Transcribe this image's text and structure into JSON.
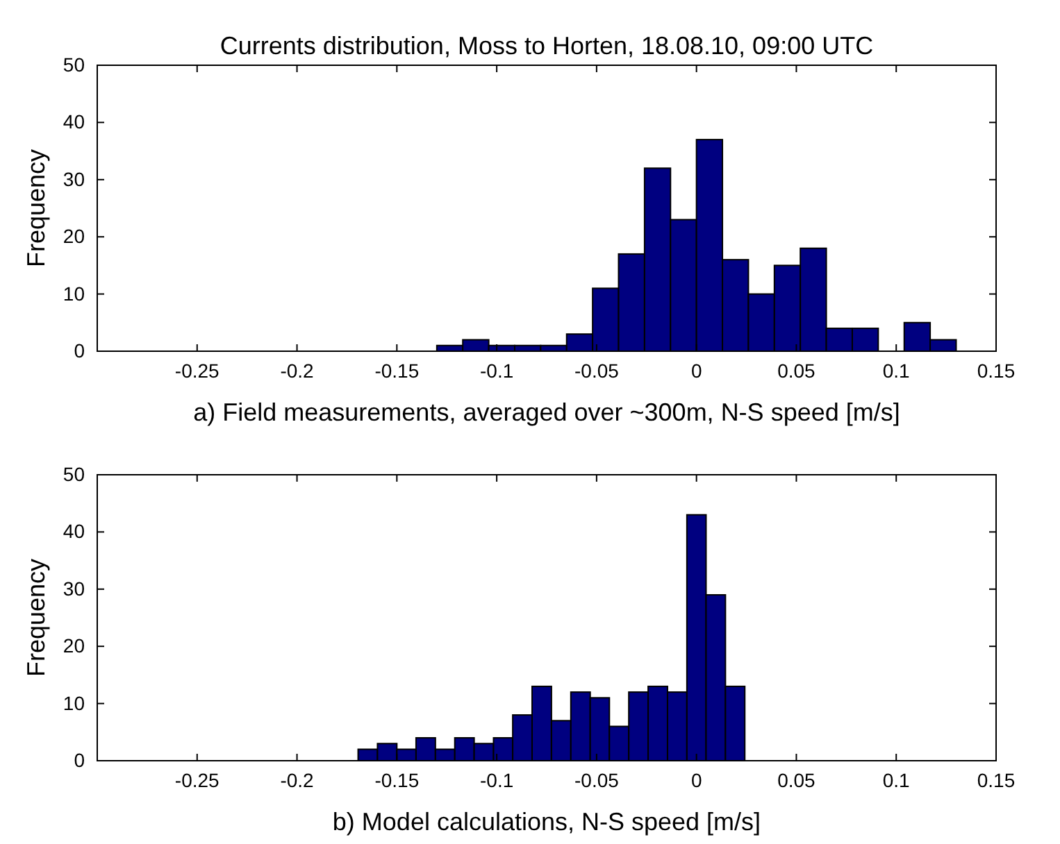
{
  "chart_data": [
    {
      "type": "histogram",
      "title": "Currents distribution, Moss to Horten, 18.08.10, 09:00 UTC",
      "xlabel": "a) Field measurements, averaged over ~300m, N-S speed [m/s]",
      "ylabel": "Frequency",
      "color": "#000080",
      "bins": [
        -0.13,
        -0.117,
        -0.104,
        -0.091,
        -0.078,
        -0.065,
        -0.052,
        -0.039,
        -0.026,
        -0.013,
        0,
        0.013,
        0.026,
        0.039,
        0.052,
        0.065,
        0.078,
        0.091,
        0.104,
        0.117,
        0.13
      ],
      "values": [
        1,
        2,
        1,
        1,
        1,
        3,
        11,
        17,
        32,
        23,
        37,
        16,
        10,
        15,
        18,
        4,
        4,
        0,
        5,
        2
      ],
      "xlim": [
        -0.3,
        0.15
      ],
      "xticks": [
        -0.25,
        -0.2,
        -0.15,
        -0.1,
        -0.05,
        0,
        0.05,
        0.1,
        0.15
      ],
      "ylim": [
        0,
        50
      ],
      "yticks": [
        0,
        10,
        20,
        30,
        40,
        50
      ],
      "grid": false
    },
    {
      "type": "histogram",
      "xlabel": "b) Model calculations, N-S speed [m/s]",
      "ylabel": "Frequency",
      "color": "#000080",
      "bins": [
        -0.1694,
        -0.1597,
        -0.15,
        -0.1404,
        -0.1307,
        -0.121,
        -0.1113,
        -0.1016,
        -0.092,
        -0.0823,
        -0.0726,
        -0.0629,
        -0.0532,
        -0.0436,
        -0.0339,
        -0.0242,
        -0.0145,
        -0.0048,
        0.0048,
        0.0145,
        0.0242
      ],
      "values": [
        2,
        3,
        2,
        4,
        2,
        4,
        3,
        4,
        8,
        13,
        7,
        12,
        11,
        6,
        12,
        13,
        12,
        43,
        29,
        13
      ],
      "xlim": [
        -0.3,
        0.15
      ],
      "xticks": [
        -0.25,
        -0.2,
        -0.15,
        -0.1,
        -0.05,
        0,
        0.05,
        0.1,
        0.15
      ],
      "ylim": [
        0,
        50
      ],
      "yticks": [
        0,
        10,
        20,
        30,
        40,
        50
      ],
      "grid": false
    }
  ]
}
